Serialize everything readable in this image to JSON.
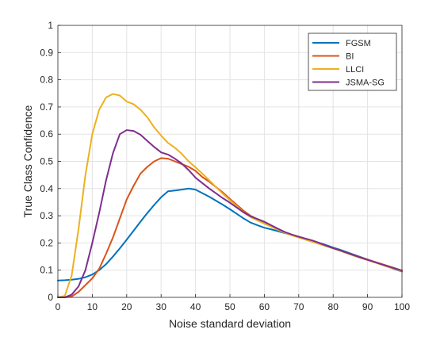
{
  "chart_data": {
    "type": "line",
    "title": "",
    "xlabel": "Noise standard deviation",
    "ylabel": "True Class Confidence",
    "xlim": [
      0,
      100
    ],
    "ylim": [
      0,
      1
    ],
    "xticks": [
      0,
      10,
      20,
      30,
      40,
      50,
      60,
      70,
      80,
      90,
      100
    ],
    "yticks": [
      0,
      0.1,
      0.2,
      0.3,
      0.4,
      0.5,
      0.6,
      0.7,
      0.8,
      0.9,
      1
    ],
    "xtick_labels": [
      "0",
      "10",
      "20",
      "30",
      "40",
      "50",
      "60",
      "70",
      "80",
      "90",
      "100"
    ],
    "ytick_labels": [
      "0",
      "0.1",
      "0.2",
      "0.3",
      "0.4",
      "0.5",
      "0.6",
      "0.7",
      "0.8",
      "0.9",
      "1"
    ],
    "grid": true,
    "legend_position": "top-right",
    "x": [
      0,
      2,
      4,
      6,
      8,
      10,
      12,
      14,
      16,
      18,
      20,
      22,
      24,
      26,
      28,
      30,
      32,
      34,
      36,
      38,
      40,
      42,
      44,
      46,
      48,
      50,
      52,
      54,
      56,
      58,
      60,
      62,
      64,
      66,
      68,
      70,
      72,
      74,
      76,
      78,
      80,
      82,
      84,
      86,
      88,
      90,
      92,
      94,
      96,
      98,
      100
    ],
    "series": [
      {
        "name": "FGSM",
        "color": "#0072BD",
        "values": [
          0.062,
          0.063,
          0.065,
          0.068,
          0.074,
          0.084,
          0.1,
          0.122,
          0.15,
          0.18,
          0.212,
          0.245,
          0.278,
          0.31,
          0.34,
          0.368,
          0.39,
          0.393,
          0.396,
          0.4,
          0.396,
          0.383,
          0.37,
          0.355,
          0.34,
          0.324,
          0.307,
          0.29,
          0.275,
          0.265,
          0.256,
          0.25,
          0.243,
          0.236,
          0.229,
          0.222,
          0.215,
          0.207,
          0.2,
          0.192,
          0.183,
          0.175,
          0.166,
          0.157,
          0.148,
          0.139,
          0.13,
          0.121,
          0.112,
          0.103,
          0.095
        ]
      },
      {
        "name": "BI",
        "color": "#D95319",
        "values": [
          0.0,
          0.0,
          0.003,
          0.02,
          0.045,
          0.07,
          0.105,
          0.16,
          0.22,
          0.29,
          0.36,
          0.41,
          0.455,
          0.48,
          0.5,
          0.512,
          0.51,
          0.5,
          0.49,
          0.48,
          0.465,
          0.442,
          0.425,
          0.405,
          0.385,
          0.362,
          0.34,
          0.318,
          0.3,
          0.287,
          0.275,
          0.261,
          0.25,
          0.238,
          0.229,
          0.222,
          0.215,
          0.207,
          0.198,
          0.189,
          0.18,
          0.172,
          0.163,
          0.155,
          0.147,
          0.139,
          0.131,
          0.123,
          0.115,
          0.107,
          0.098
        ]
      },
      {
        "name": "LLCI",
        "color": "#EDB120",
        "values": [
          0.0,
          0.005,
          0.08,
          0.25,
          0.45,
          0.6,
          0.69,
          0.735,
          0.748,
          0.742,
          0.72,
          0.71,
          0.69,
          0.662,
          0.625,
          0.595,
          0.568,
          0.55,
          0.528,
          0.5,
          0.478,
          0.455,
          0.43,
          0.405,
          0.38,
          0.357,
          0.335,
          0.312,
          0.295,
          0.283,
          0.271,
          0.26,
          0.248,
          0.237,
          0.228,
          0.22,
          0.212,
          0.204,
          0.196,
          0.188,
          0.18,
          0.171,
          0.162,
          0.153,
          0.145,
          0.137,
          0.129,
          0.12,
          0.112,
          0.104,
          0.097
        ]
      },
      {
        "name": "JSMA-SG",
        "color": "#7E2F8E",
        "values": [
          0.0,
          0.0,
          0.01,
          0.04,
          0.1,
          0.2,
          0.31,
          0.43,
          0.53,
          0.6,
          0.615,
          0.612,
          0.598,
          0.575,
          0.553,
          0.533,
          0.525,
          0.51,
          0.492,
          0.468,
          0.44,
          0.42,
          0.4,
          0.382,
          0.364,
          0.348,
          0.33,
          0.312,
          0.298,
          0.288,
          0.278,
          0.265,
          0.252,
          0.24,
          0.231,
          0.223,
          0.216,
          0.209,
          0.2,
          0.19,
          0.181,
          0.173,
          0.164,
          0.155,
          0.146,
          0.138,
          0.13,
          0.122,
          0.114,
          0.106,
          0.099
        ]
      }
    ]
  }
}
